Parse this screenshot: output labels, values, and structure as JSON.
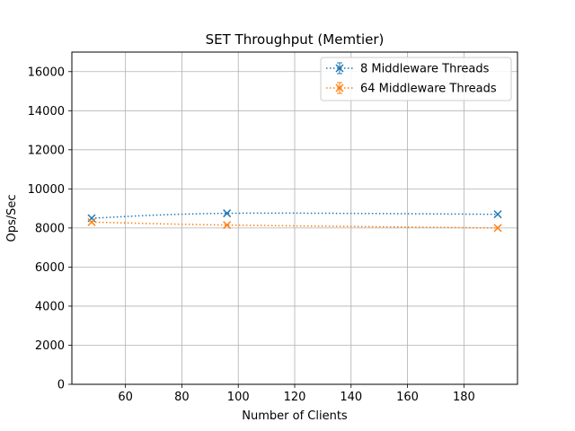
{
  "chart_data": {
    "type": "line",
    "title": "SET Throughput (Memtier)",
    "xlabel": "Number of Clients",
    "ylabel": "Ops/Sec",
    "xlim": [
      41,
      199
    ],
    "ylim": [
      0,
      17000
    ],
    "xticks": [
      60,
      80,
      100,
      120,
      140,
      160,
      180
    ],
    "yticks": [
      0,
      2000,
      4000,
      6000,
      8000,
      10000,
      12000,
      14000,
      16000
    ],
    "grid": true,
    "legend_position": "top-right",
    "series": [
      {
        "name": "8 Middleware Threads",
        "color": "#1f77b4",
        "line_style": "dotted",
        "marker": "x",
        "error_bars": true,
        "x": [
          48,
          96,
          192
        ],
        "y": [
          8500,
          8750,
          8700
        ]
      },
      {
        "name": "64 Middleware Threads",
        "color": "#ff7f0e",
        "line_style": "dotted",
        "marker": "x",
        "error_bars": true,
        "x": [
          48,
          96,
          192
        ],
        "y": [
          8300,
          8150,
          8000
        ]
      }
    ]
  }
}
